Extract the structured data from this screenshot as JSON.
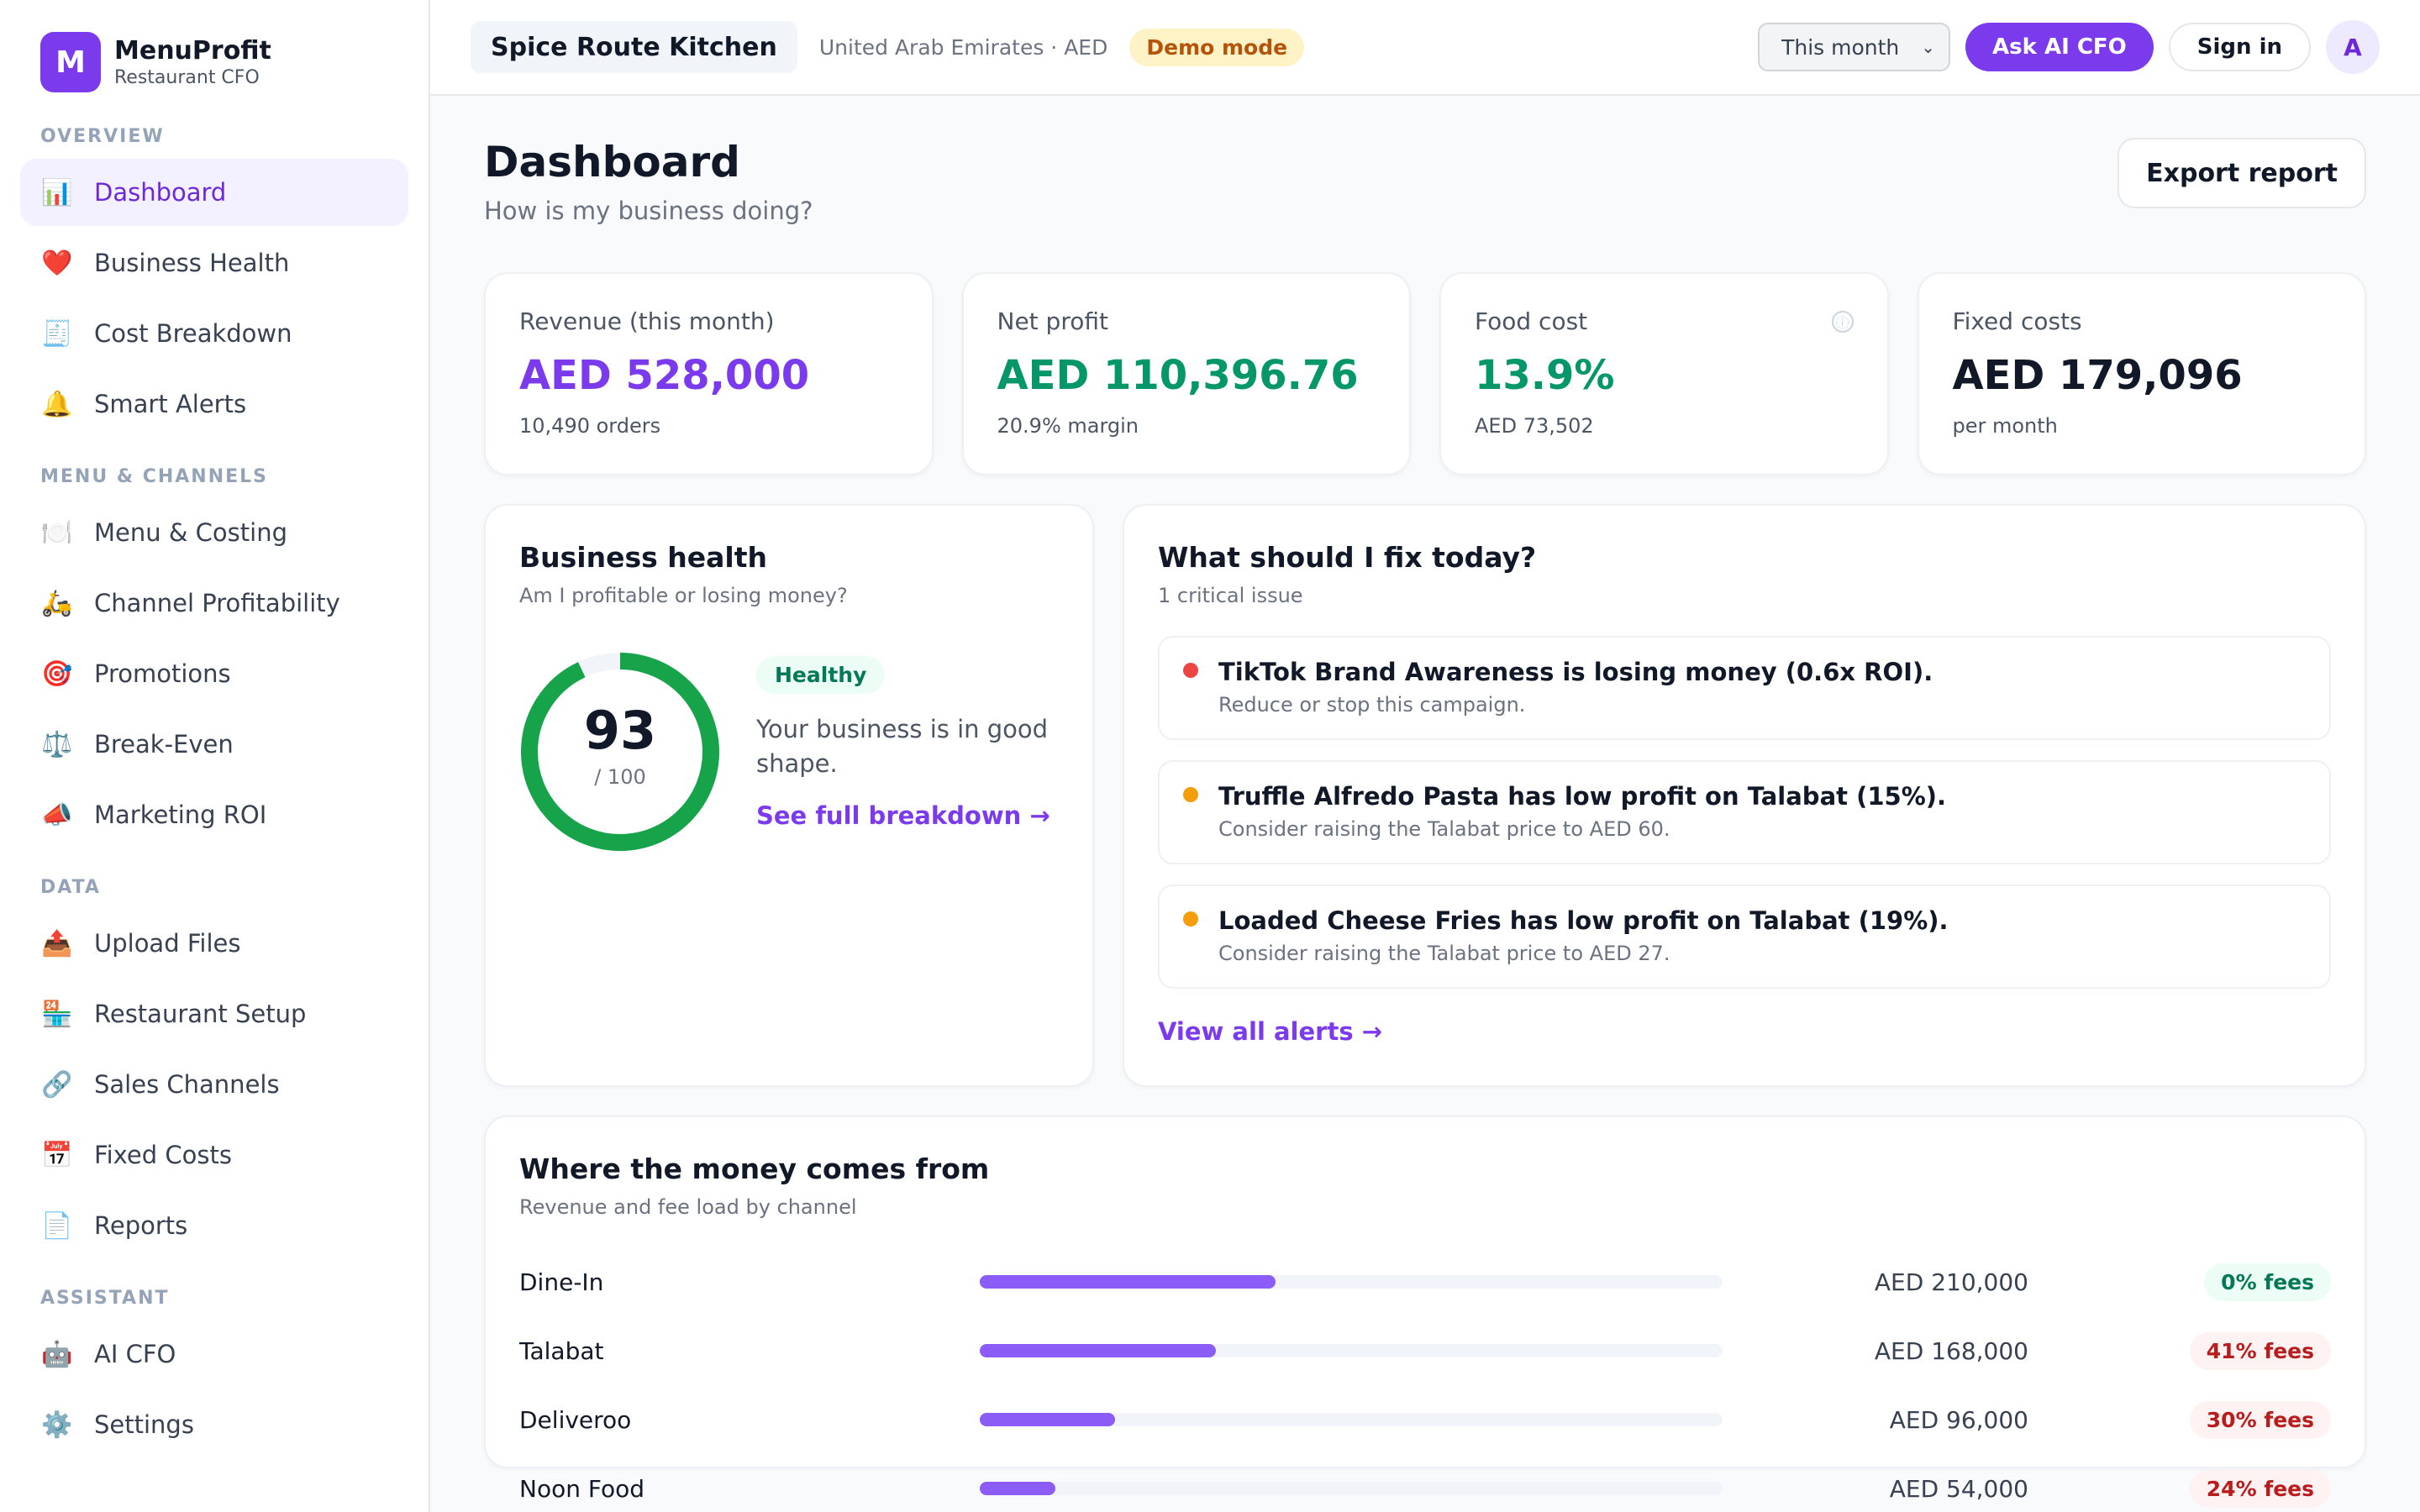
{
  "brand": {
    "letter": "M",
    "name": "MenuProfit",
    "subtitle": "Restaurant CFO"
  },
  "sidebar": {
    "sections": [
      {
        "title": "OVERVIEW",
        "items": [
          {
            "icon": "📊",
            "icon_name": "bar-chart-icon",
            "label": "Dashboard",
            "active": true
          },
          {
            "icon": "❤️",
            "icon_name": "heart-icon",
            "label": "Business Health"
          },
          {
            "icon": "🧾",
            "icon_name": "receipt-icon",
            "label": "Cost Breakdown"
          },
          {
            "icon": "🔔",
            "icon_name": "bell-icon",
            "label": "Smart Alerts"
          }
        ]
      },
      {
        "title": "MENU & CHANNELS",
        "items": [
          {
            "icon": "🍽️",
            "icon_name": "plate-icon",
            "label": "Menu & Costing"
          },
          {
            "icon": "🛵",
            "icon_name": "scooter-icon",
            "label": "Channel Profitability"
          },
          {
            "icon": "🎯",
            "icon_name": "target-icon",
            "label": "Promotions"
          },
          {
            "icon": "⚖️",
            "icon_name": "scale-icon",
            "label": "Break-Even"
          },
          {
            "icon": "📣",
            "icon_name": "megaphone-icon",
            "label": "Marketing ROI"
          }
        ]
      },
      {
        "title": "DATA",
        "items": [
          {
            "icon": "📤",
            "icon_name": "upload-icon",
            "label": "Upload Files"
          },
          {
            "icon": "🏪",
            "icon_name": "store-icon",
            "label": "Restaurant Setup"
          },
          {
            "icon": "🔗",
            "icon_name": "link-icon",
            "label": "Sales Channels"
          },
          {
            "icon": "📅",
            "icon_name": "calendar-icon",
            "label": "Fixed Costs"
          },
          {
            "icon": "📄",
            "icon_name": "document-icon",
            "label": "Reports"
          }
        ]
      },
      {
        "title": "ASSISTANT",
        "items": [
          {
            "icon": "🤖",
            "icon_name": "robot-icon",
            "label": "AI CFO"
          },
          {
            "icon": "⚙️",
            "icon_name": "gear-icon",
            "label": "Settings"
          }
        ]
      }
    ]
  },
  "topbar": {
    "restaurant": "Spice Route Kitchen",
    "region": "United Arab Emirates · AED",
    "demo_badge": "Demo mode",
    "period": "This month",
    "ask_ai": "Ask AI CFO",
    "sign_in": "Sign in",
    "avatar_letter": "A"
  },
  "page": {
    "title": "Dashboard",
    "subtitle": "How is my business doing?",
    "export_label": "Export report"
  },
  "kpis": [
    {
      "label": "Revenue (this month)",
      "value": "AED 528,000",
      "sub": "10,490 orders",
      "color": "#7c3aed"
    },
    {
      "label": "Net profit",
      "value": "AED 110,396.76",
      "sub": "20.9% margin",
      "color": "#059669"
    },
    {
      "label": "Food cost",
      "value": "13.9%",
      "sub": "AED 73,502",
      "color": "#059669",
      "info": "ⓘ"
    },
    {
      "label": "Fixed costs",
      "value": "AED 179,096",
      "sub": "per month",
      "color": "#111827"
    }
  ],
  "health": {
    "title": "Business health",
    "subtitle": "Am I profitable or losing money?",
    "score": "93",
    "score_value": 93,
    "out_of": "/ 100",
    "status": "Healthy",
    "description": "Your business is in good shape.",
    "link": "See full breakdown →",
    "color": "#16a34a"
  },
  "fix": {
    "title": "What should I fix today?",
    "subtitle": "1 critical issue",
    "issues": [
      {
        "severity": "critical",
        "color": "#ef4444",
        "title": "TikTok Brand Awareness is losing money (0.6x ROI).",
        "detail": "Reduce or stop this campaign."
      },
      {
        "severity": "warning",
        "color": "#f59e0b",
        "title": "Truffle Alfredo Pasta has low profit on Talabat (15%).",
        "detail": "Consider raising the Talabat price to AED 60."
      },
      {
        "severity": "warning",
        "color": "#f59e0b",
        "title": "Loaded Cheese Fries has low profit on Talabat (19%).",
        "detail": "Consider raising the Talabat price to AED 27."
      }
    ],
    "link": "View all alerts →"
  },
  "money": {
    "title": "Where the money comes from",
    "subtitle": "Revenue and fee load by channel",
    "channels": [
      {
        "name": "Dine-In",
        "revenue": "AED 210,000",
        "share": 0.3977,
        "fees": "0% fees",
        "fee_status": "ok"
      },
      {
        "name": "Talabat",
        "revenue": "AED 168,000",
        "share": 0.3182,
        "fees": "41% fees",
        "fee_status": "bad"
      },
      {
        "name": "Deliveroo",
        "revenue": "AED 96,000",
        "share": 0.1818,
        "fees": "30% fees",
        "fee_status": "bad"
      },
      {
        "name": "Noon Food",
        "revenue": "AED 54,000",
        "share": 0.1023,
        "fees": "24% fees",
        "fee_status": "bad"
      }
    ]
  }
}
